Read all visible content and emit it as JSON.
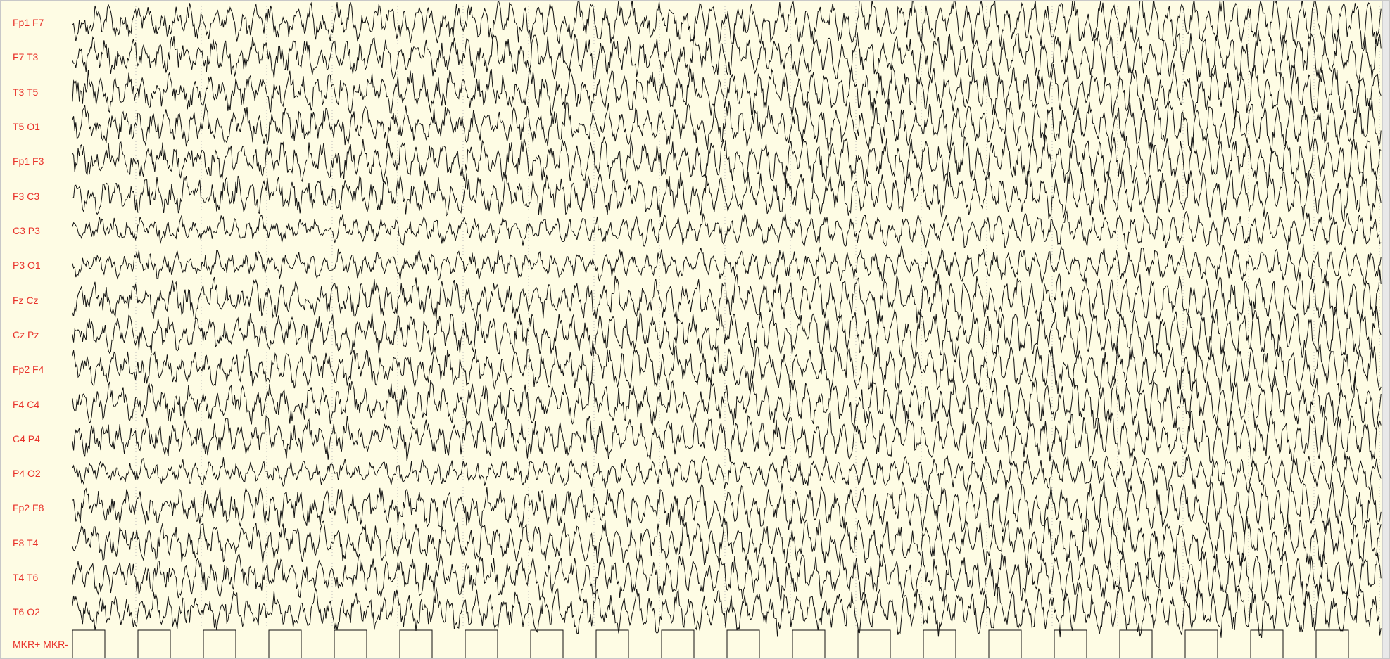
{
  "montage": {
    "channels": [
      {
        "label": "Fp1 F7"
      },
      {
        "label": "F7 T3"
      },
      {
        "label": "T3 T5"
      },
      {
        "label": "T5 O1"
      },
      {
        "label": "Fp1 F3"
      },
      {
        "label": "F3 C3"
      },
      {
        "label": "C3 P3"
      },
      {
        "label": "P3 O1"
      },
      {
        "label": "Fz Cz"
      },
      {
        "label": "Cz Pz"
      },
      {
        "label": "Fp2 F4"
      },
      {
        "label": "F4 C4"
      },
      {
        "label": "C4 P4"
      },
      {
        "label": "P4 O2"
      },
      {
        "label": "Fp2 F8"
      },
      {
        "label": "F8 T4"
      },
      {
        "label": "T4 T6"
      },
      {
        "label": "T6 O2"
      },
      {
        "label": "MKR+ MKR-"
      }
    ]
  },
  "colors": {
    "background": "#fefce4",
    "label_text": "#e8322a",
    "trace": "#111111",
    "grid_dotted": "#bdbdbd"
  }
}
